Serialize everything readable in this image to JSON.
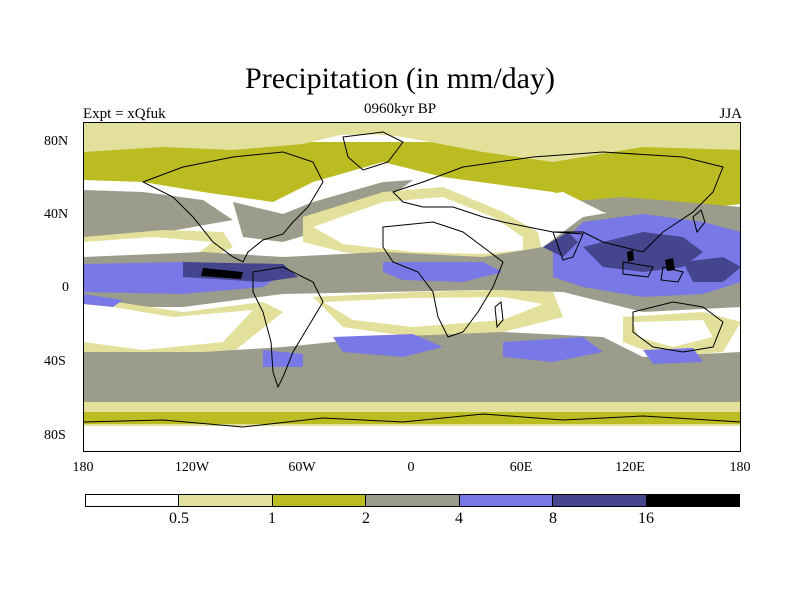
{
  "title": "Precipitation (in mm/day)",
  "subtitle_center": "0960kyr BP",
  "subtitle_left": "Expt = xQfuk",
  "subtitle_right": "JJA",
  "lat_labels": [
    "80N",
    "40N",
    "0",
    "40S",
    "80S"
  ],
  "lon_labels": [
    "180",
    "120W",
    "60W",
    "0",
    "60E",
    "120E",
    "180"
  ],
  "colorbar": {
    "colors": [
      "#ffffff",
      "#e2e09a",
      "#bbbb22",
      "#9c9c8c",
      "#7878e6",
      "#45458e",
      "#000000"
    ],
    "labels": [
      "0.5",
      "1",
      "2",
      "4",
      "8",
      "16"
    ]
  }
}
